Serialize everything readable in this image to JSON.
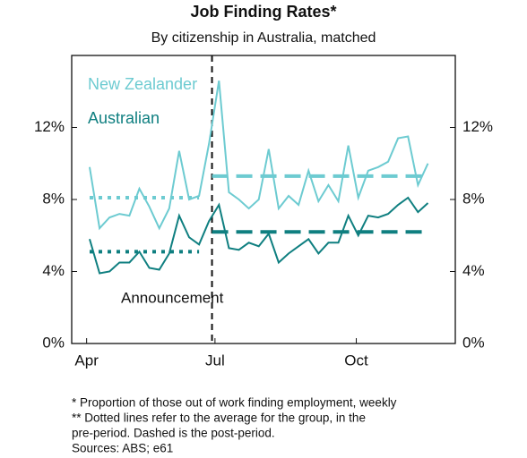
{
  "chart_data": {
    "type": "line",
    "title": "Job Finding Rates*",
    "subtitle": "By citizenship in Australia, matched",
    "x": [
      0,
      1,
      2,
      3,
      4,
      5,
      6,
      7,
      8,
      9,
      10,
      11,
      12,
      13,
      14,
      15,
      16,
      17,
      18,
      19,
      20,
      21,
      22,
      23,
      24,
      25,
      26,
      27,
      28,
      29,
      30,
      31,
      32,
      33,
      34
    ],
    "xlim": [
      -1.8,
      36.75
    ],
    "xticks": [
      {
        "value": -0.3,
        "label": "Apr"
      },
      {
        "value": 12.6,
        "label": "Jul"
      },
      {
        "value": 26.8,
        "label": "Oct"
      }
    ],
    "ylim": [
      0,
      16
    ],
    "yticks": [
      {
        "value": 0,
        "label": "0%"
      },
      {
        "value": 4,
        "label": "4%"
      },
      {
        "value": 8,
        "label": "8%"
      },
      {
        "value": 12,
        "label": "12%"
      }
    ],
    "series": [
      {
        "name": "New Zealander",
        "color": "#6dcbd1",
        "pre_average": 8.1,
        "post_average": 9.3,
        "values": [
          9.8,
          6.4,
          7.0,
          7.2,
          7.1,
          8.6,
          7.6,
          6.4,
          7.5,
          10.7,
          8.0,
          8.2,
          11.1,
          14.6,
          8.4,
          8.0,
          7.5,
          8.0,
          10.8,
          7.5,
          8.2,
          7.7,
          9.6,
          7.9,
          8.8,
          7.9,
          11.0,
          8.1,
          9.6,
          9.8,
          10.1,
          11.4,
          11.5,
          8.8,
          10.0
        ]
      },
      {
        "name": "Australian",
        "color": "#0f7f80",
        "pre_average": 5.1,
        "post_average": 6.2,
        "values": [
          5.8,
          3.9,
          4.0,
          4.5,
          4.5,
          5.1,
          4.2,
          4.1,
          5.0,
          7.1,
          5.9,
          5.5,
          6.8,
          7.7,
          5.3,
          5.2,
          5.6,
          5.4,
          6.1,
          4.5,
          5.0,
          5.4,
          5.8,
          5.0,
          5.6,
          5.6,
          7.1,
          6.0,
          7.1,
          7.0,
          7.2,
          7.7,
          8.1,
          7.3,
          7.8
        ]
      }
    ],
    "event": {
      "x": 12.3,
      "label": "Announcement"
    },
    "footnotes": [
      "* Proportion of those out of work finding employment, weekly",
      "** Dotted lines refer to the average for the group, in the",
      "pre-period. Dashed is the post-period.",
      "Sources: ABS; e61"
    ]
  }
}
